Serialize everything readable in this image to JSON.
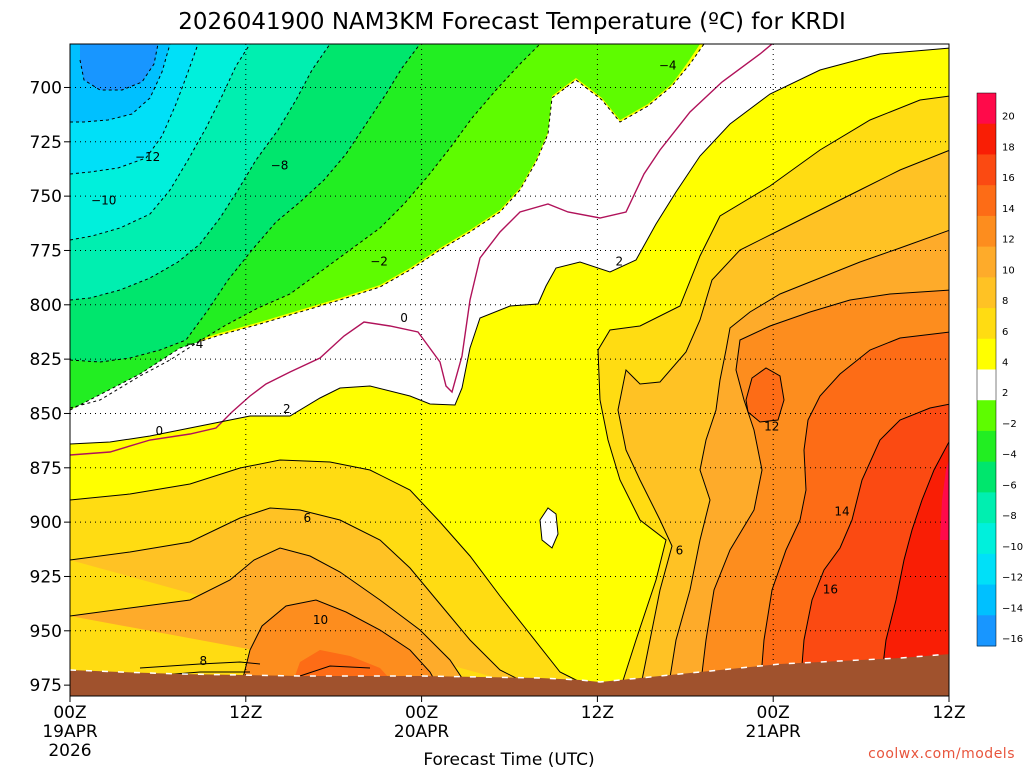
{
  "chart_data": {
    "type": "heatmap",
    "title": "2026041900 NAM3KM Forecast Temperature (ºC) for KRDI",
    "xlabel": "Forecast Time (UTC)",
    "ylabel": "",
    "x_range_hours": [
      0,
      60
    ],
    "y_range_hpa": [
      680,
      980
    ],
    "y_ticks": [
      "700",
      "725",
      "750",
      "775",
      "800",
      "825",
      "850",
      "875",
      "900",
      "925",
      "950",
      "975"
    ],
    "x_ticks": [
      {
        "hour": 0,
        "l1": "00Z",
        "l2": "19APR",
        "l3": "2026"
      },
      {
        "hour": 12,
        "l1": "12Z",
        "l2": "",
        "l3": ""
      },
      {
        "hour": 24,
        "l1": "00Z",
        "l2": "20APR",
        "l3": ""
      },
      {
        "hour": 36,
        "l1": "12Z",
        "l2": "",
        "l3": ""
      },
      {
        "hour": 48,
        "l1": "00Z",
        "l2": "21APR",
        "l3": ""
      },
      {
        "hour": 60,
        "l1": "12Z",
        "l2": "",
        "l3": ""
      }
    ],
    "colorbar": [
      {
        "value": 20,
        "label": "20",
        "color": "#ff0a4a"
      },
      {
        "value": 18,
        "label": "18",
        "color": "#f91e05"
      },
      {
        "value": 16,
        "label": "16",
        "color": "#fb4a12"
      },
      {
        "value": 14,
        "label": "14",
        "color": "#fd6c16"
      },
      {
        "value": 12,
        "label": "12",
        "color": "#fd8d1e"
      },
      {
        "value": 10,
        "label": "10",
        "color": "#feab2a"
      },
      {
        "value": 8,
        "label": "8",
        "color": "#ffc224"
      },
      {
        "value": 6,
        "label": "6",
        "color": "#ffdc12"
      },
      {
        "value": 4,
        "label": "4",
        "color": "#ffff00"
      },
      {
        "value": 2,
        "label": "2",
        "color": "#ffffff"
      },
      {
        "value": -2,
        "label": "−2",
        "color": "#5efc00"
      },
      {
        "value": -4,
        "label": "−4",
        "color": "#22ee22"
      },
      {
        "value": -6,
        "label": "−6",
        "color": "#00e66d"
      },
      {
        "value": -8,
        "label": "−8",
        "color": "#00efb0"
      },
      {
        "value": -10,
        "label": "−10",
        "color": "#00f0dc"
      },
      {
        "value": -12,
        "label": "−12",
        "color": "#00e0f8"
      },
      {
        "value": -14,
        "label": "−14",
        "color": "#00c0ff"
      },
      {
        "value": -16,
        "label": "−16",
        "color": "#1896ff"
      }
    ],
    "contour_labels": [
      {
        "text": "−4",
        "h": 40.8,
        "p": 690
      },
      {
        "text": "−12",
        "h": 5.3,
        "p": 732
      },
      {
        "text": "−8",
        "h": 14.3,
        "p": 736
      },
      {
        "text": "−10",
        "h": 2.3,
        "p": 752
      },
      {
        "text": "−2",
        "h": 21.1,
        "p": 780
      },
      {
        "text": "2",
        "h": 37.5,
        "p": 780
      },
      {
        "text": "0",
        "h": 22.8,
        "p": 806
      },
      {
        "text": "−4",
        "h": 8.5,
        "p": 818
      },
      {
        "text": "2",
        "h": 14.8,
        "p": 848
      },
      {
        "text": "12",
        "h": 47.9,
        "p": 856
      },
      {
        "text": "0",
        "h": 6.1,
        "p": 858
      },
      {
        "text": "14",
        "h": 52.7,
        "p": 895
      },
      {
        "text": "6",
        "h": 16.2,
        "p": 898
      },
      {
        "text": "6",
        "h": 41.6,
        "p": 913
      },
      {
        "text": "16",
        "h": 51.9,
        "p": 931
      },
      {
        "text": "10",
        "h": 17.1,
        "p": 945
      },
      {
        "text": "8",
        "h": 9.1,
        "p": 964
      }
    ],
    "grid": true,
    "legend": "right"
  },
  "watermark": "coolwx.com/models"
}
